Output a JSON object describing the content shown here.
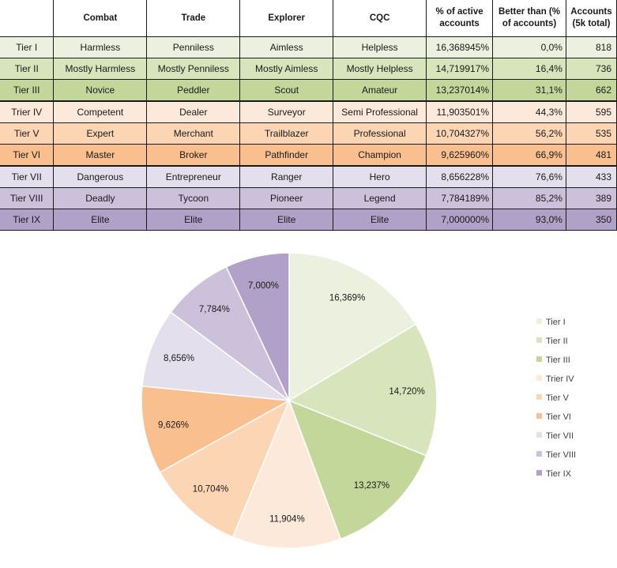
{
  "table": {
    "columns": [
      "",
      "Combat",
      "Trade",
      "Explorer",
      "CQC",
      "% of active accounts",
      "Better than (% of accounts)",
      "Accounts (5k total)"
    ],
    "rows": [
      {
        "tier": "Tier I",
        "combat": "Harmless",
        "trade": "Penniless",
        "explorer": "Aimless",
        "cqc": "Helpless",
        "pct": "16,368945%",
        "better": "0,0%",
        "accounts": "818",
        "color": "#ebf1de"
      },
      {
        "tier": "Tier II",
        "combat": "Mostly Harmless",
        "trade": "Mostly Penniless",
        "explorer": "Mostly Aimless",
        "cqc": "Mostly Helpless",
        "pct": "14,719917%",
        "better": "16,4%",
        "accounts": "736",
        "color": "#d8e4bc"
      },
      {
        "tier": "Tier III",
        "combat": "Novice",
        "trade": "Peddler",
        "explorer": "Scout",
        "cqc": "Amateur",
        "pct": "13,237014%",
        "better": "31,1%",
        "accounts": "662",
        "color": "#c4d79b"
      },
      {
        "tier": "Trier IV",
        "combat": "Competent",
        "trade": "Dealer",
        "explorer": "Surveyor",
        "cqc": "Semi Professional",
        "pct": "11,903501%",
        "better": "44,3%",
        "accounts": "595",
        "color": "#fde9d9"
      },
      {
        "tier": "Tier V",
        "combat": "Expert",
        "trade": "Merchant",
        "explorer": "Trailblazer",
        "cqc": "Professional",
        "pct": "10,704327%",
        "better": "56,2%",
        "accounts": "535",
        "color": "#fcd5b4"
      },
      {
        "tier": "Tier VI",
        "combat": "Master",
        "trade": "Broker",
        "explorer": "Pathfinder",
        "cqc": "Champion",
        "pct": "9,625960%",
        "better": "66,9%",
        "accounts": "481",
        "color": "#fabf8f"
      },
      {
        "tier": "Tier VII",
        "combat": "Dangerous",
        "trade": "Entrepreneur",
        "explorer": "Ranger",
        "cqc": "Hero",
        "pct": "8,656228%",
        "better": "76,6%",
        "accounts": "433",
        "color": "#e4dfec"
      },
      {
        "tier": "Tier VIII",
        "combat": "Deadly",
        "trade": "Tycoon",
        "explorer": "Pioneer",
        "cqc": "Legend",
        "pct": "7,784189%",
        "better": "85,2%",
        "accounts": "389",
        "color": "#ccc0da"
      },
      {
        "tier": "Tier IX",
        "combat": "Elite",
        "trade": "Elite",
        "explorer": "Elite",
        "cqc": "Elite",
        "pct": "7,000000%",
        "better": "93,0%",
        "accounts": "350",
        "color": "#b1a0c7"
      }
    ]
  },
  "chart_data": {
    "type": "pie",
    "title": "",
    "legend_position": "right",
    "categories": [
      "Tier I",
      "Tier II",
      "Tier III",
      "Trier IV",
      "Tier V",
      "Tier VI",
      "Tier VII",
      "Tier VIII",
      "Tier IX"
    ],
    "values": [
      16.369,
      14.72,
      13.237,
      11.904,
      10.704,
      9.626,
      8.656,
      7.784,
      7.0
    ],
    "labels": [
      "16,369%",
      "14,720%",
      "13,237%",
      "11,904%",
      "10,704%",
      "9,626%",
      "8,656%",
      "7,784%",
      "7,000%"
    ],
    "colors": [
      "#ebf1de",
      "#d8e4bc",
      "#c4d79b",
      "#fde9d9",
      "#fcd5b4",
      "#fabf8f",
      "#e4dfec",
      "#ccc0da",
      "#b1a0c7"
    ]
  }
}
